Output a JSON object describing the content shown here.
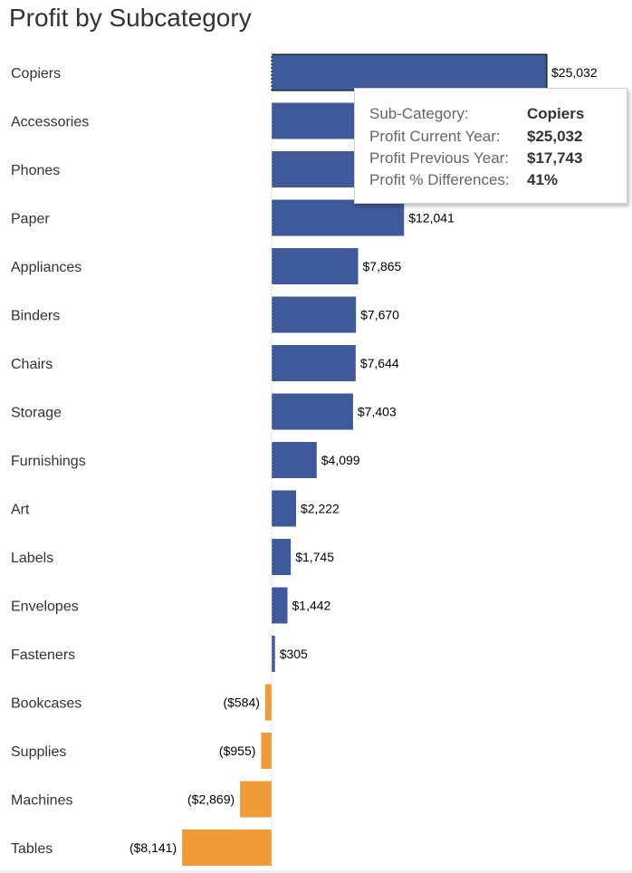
{
  "chart_data": {
    "type": "bar",
    "orientation": "horizontal",
    "title": "Profit by Subcategory",
    "categories": [
      "Copiers",
      "Accessories",
      "Phones",
      "Paper",
      "Appliances",
      "Binders",
      "Chairs",
      "Storage",
      "Furnishings",
      "Art",
      "Labels",
      "Envelopes",
      "Fasteners",
      "Bookcases",
      "Supplies",
      "Machines",
      "Tables"
    ],
    "values": [
      25032,
      16500,
      14000,
      12041,
      7865,
      7670,
      7644,
      7403,
      4099,
      2222,
      1745,
      1442,
      305,
      -584,
      -955,
      -2869,
      -8141
    ],
    "value_labels": [
      "$25,032",
      "",
      "",
      "$12,041",
      "$7,865",
      "$7,670",
      "$7,644",
      "$7,403",
      "$4,099",
      "$2,222",
      "$1,745",
      "$1,442",
      "$305",
      "($584)",
      "($955)",
      "($2,869)",
      "($8,141)"
    ],
    "colors": {
      "positive": "#3f5a9b",
      "negative": "#f19b38",
      "zero_line": "#d8d8d8"
    },
    "selected": "Copiers",
    "xlim": [
      -8141,
      25032
    ]
  },
  "tooltip": {
    "rows": [
      {
        "key": "Sub-Category:",
        "value": "Copiers"
      },
      {
        "key": "Profit Current Year:",
        "value": "$25,032"
      },
      {
        "key": "Profit Previous Year:",
        "value": "$17,743"
      },
      {
        "key": "Profit % Differences:",
        "value": "41%"
      }
    ]
  }
}
